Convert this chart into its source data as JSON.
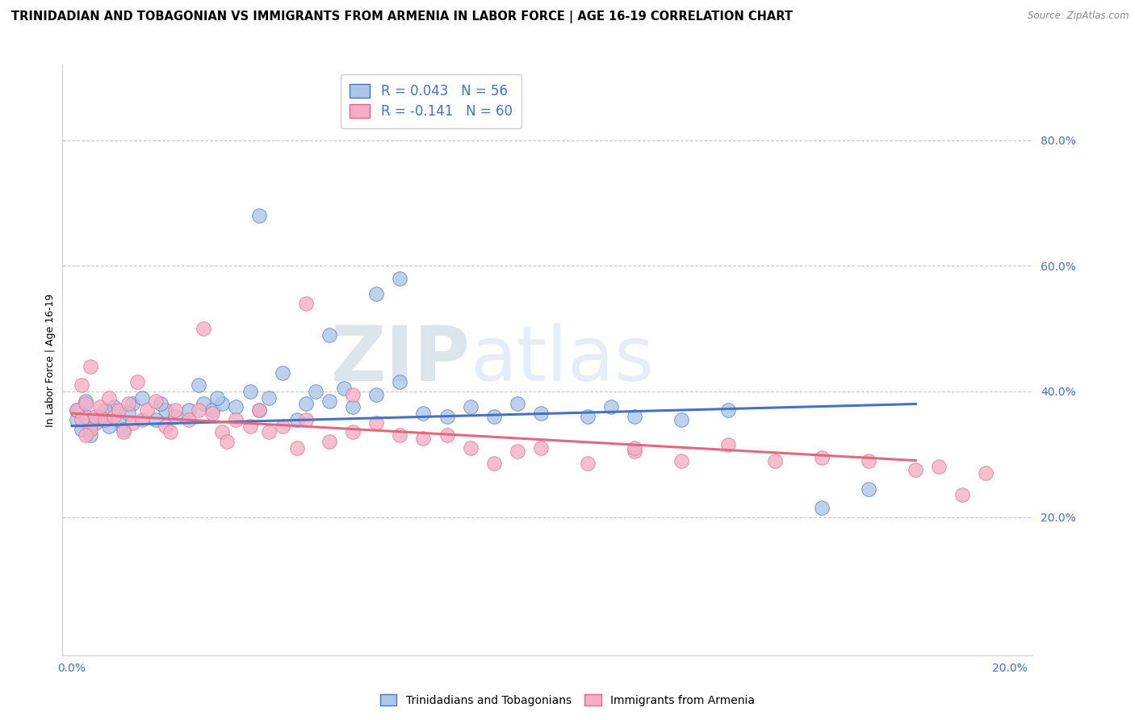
{
  "title": "TRINIDADIAN AND TOBAGONIAN VS IMMIGRANTS FROM ARMENIA IN LABOR FORCE | AGE 16-19 CORRELATION CHART",
  "source": "Source: ZipAtlas.com",
  "ylabel": "In Labor Force | Age 16-19",
  "xlim": [
    -0.002,
    0.205
  ],
  "ylim": [
    -0.02,
    0.92
  ],
  "xticks": [
    0.0,
    0.2
  ],
  "yticks": [
    0.2,
    0.4,
    0.6,
    0.8
  ],
  "xticklabels": [
    "0.0%",
    "20.0%"
  ],
  "yticklabels": [
    "20.0%",
    "40.0%",
    "60.0%",
    "80.0%"
  ],
  "legend_r1": "R = 0.043",
  "legend_n1": "N = 56",
  "legend_r2": "R = -0.141",
  "legend_n2": "N = 60",
  "color_blue": "#adc6e8",
  "color_pink": "#f5aec5",
  "line_color_blue": "#4472c4",
  "line_color_pink": "#e06880",
  "watermark_zip": "ZIP",
  "watermark_atlas": "atlas",
  "blue_points_x": [
    0.001,
    0.002,
    0.003,
    0.004,
    0.001,
    0.005,
    0.006,
    0.008,
    0.009,
    0.003,
    0.007,
    0.01,
    0.011,
    0.013,
    0.015,
    0.012,
    0.018,
    0.02,
    0.022,
    0.019,
    0.025,
    0.028,
    0.027,
    0.03,
    0.032,
    0.031,
    0.035,
    0.038,
    0.04,
    0.042,
    0.045,
    0.048,
    0.05,
    0.052,
    0.055,
    0.058,
    0.06,
    0.065,
    0.07,
    0.075,
    0.08,
    0.085,
    0.09,
    0.095,
    0.1,
    0.11,
    0.115,
    0.12,
    0.13,
    0.14,
    0.065,
    0.07,
    0.04,
    0.055,
    0.17,
    0.16
  ],
  "blue_points_y": [
    0.355,
    0.34,
    0.36,
    0.33,
    0.37,
    0.35,
    0.36,
    0.345,
    0.375,
    0.385,
    0.37,
    0.355,
    0.34,
    0.38,
    0.39,
    0.365,
    0.355,
    0.37,
    0.36,
    0.38,
    0.37,
    0.38,
    0.41,
    0.37,
    0.38,
    0.39,
    0.375,
    0.4,
    0.37,
    0.39,
    0.43,
    0.355,
    0.38,
    0.4,
    0.385,
    0.405,
    0.375,
    0.395,
    0.415,
    0.365,
    0.36,
    0.375,
    0.36,
    0.38,
    0.365,
    0.36,
    0.375,
    0.36,
    0.355,
    0.37,
    0.555,
    0.58,
    0.68,
    0.49,
    0.245,
    0.215
  ],
  "pink_points_x": [
    0.001,
    0.002,
    0.003,
    0.004,
    0.002,
    0.005,
    0.006,
    0.007,
    0.008,
    0.003,
    0.009,
    0.01,
    0.012,
    0.013,
    0.011,
    0.015,
    0.016,
    0.018,
    0.02,
    0.022,
    0.021,
    0.025,
    0.027,
    0.03,
    0.032,
    0.035,
    0.033,
    0.038,
    0.04,
    0.042,
    0.045,
    0.048,
    0.05,
    0.055,
    0.06,
    0.065,
    0.07,
    0.075,
    0.08,
    0.085,
    0.09,
    0.095,
    0.1,
    0.11,
    0.12,
    0.13,
    0.14,
    0.15,
    0.16,
    0.17,
    0.18,
    0.185,
    0.19,
    0.195,
    0.004,
    0.014,
    0.028,
    0.06,
    0.12,
    0.05
  ],
  "pink_points_y": [
    0.37,
    0.355,
    0.38,
    0.34,
    0.41,
    0.36,
    0.375,
    0.355,
    0.39,
    0.33,
    0.36,
    0.37,
    0.38,
    0.35,
    0.335,
    0.355,
    0.37,
    0.385,
    0.345,
    0.37,
    0.335,
    0.355,
    0.37,
    0.365,
    0.335,
    0.355,
    0.32,
    0.345,
    0.37,
    0.335,
    0.345,
    0.31,
    0.355,
    0.32,
    0.335,
    0.35,
    0.33,
    0.325,
    0.33,
    0.31,
    0.285,
    0.305,
    0.31,
    0.285,
    0.305,
    0.29,
    0.315,
    0.29,
    0.295,
    0.29,
    0.275,
    0.28,
    0.235,
    0.27,
    0.44,
    0.415,
    0.5,
    0.395,
    0.31,
    0.54
  ],
  "blue_trend_x": [
    0.0,
    0.18
  ],
  "blue_trend_y": [
    0.345,
    0.38
  ],
  "pink_trend_x": [
    0.0,
    0.18
  ],
  "pink_trend_y": [
    0.365,
    0.29
  ],
  "bg_color": "#ffffff",
  "grid_color": "#c8c8c8",
  "title_fontsize": 10.5,
  "axis_fontsize": 9,
  "tick_fontsize": 10
}
